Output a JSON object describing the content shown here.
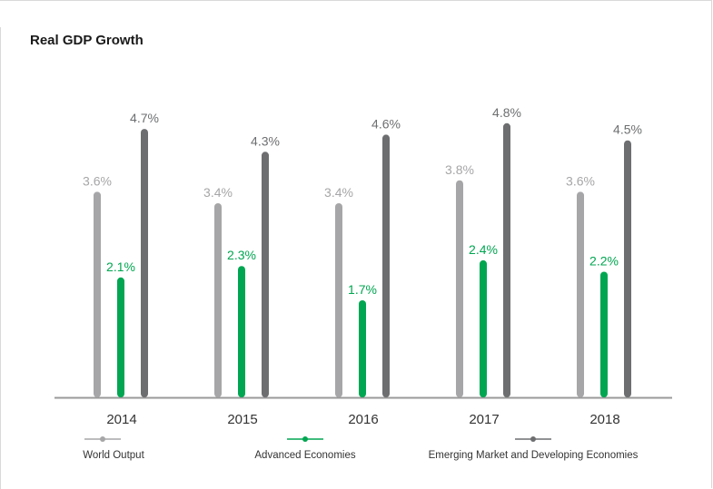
{
  "chart_data": {
    "type": "bar",
    "title": "Real GDP Growth",
    "categories": [
      "2014",
      "2015",
      "2016",
      "2017",
      "2018"
    ],
    "series": [
      {
        "name": "World Output",
        "values": [
          3.6,
          3.4,
          3.4,
          3.8,
          3.6
        ],
        "labels": [
          "3.6%",
          "3.4%",
          "3.4%",
          "3.8%",
          "3.6%"
        ],
        "color": "#a6a6a8"
      },
      {
        "name": "Advanced Economies",
        "values": [
          2.1,
          2.3,
          1.7,
          2.4,
          2.2
        ],
        "labels": [
          "2.1%",
          "2.3%",
          "1.7%",
          "2.4%",
          "2.2%"
        ],
        "color": "#00a651"
      },
      {
        "name": "Emerging Market and Developing Economies",
        "values": [
          4.7,
          4.3,
          4.6,
          4.8,
          4.5
        ],
        "labels": [
          "4.7%",
          "4.3%",
          "4.6%",
          "4.8%",
          "4.5%"
        ],
        "color": "#6d6e70"
      }
    ],
    "ylim": [
      0,
      5.5
    ],
    "grid": false,
    "legend_position": "bottom",
    "xlabel": "",
    "ylabel": ""
  }
}
